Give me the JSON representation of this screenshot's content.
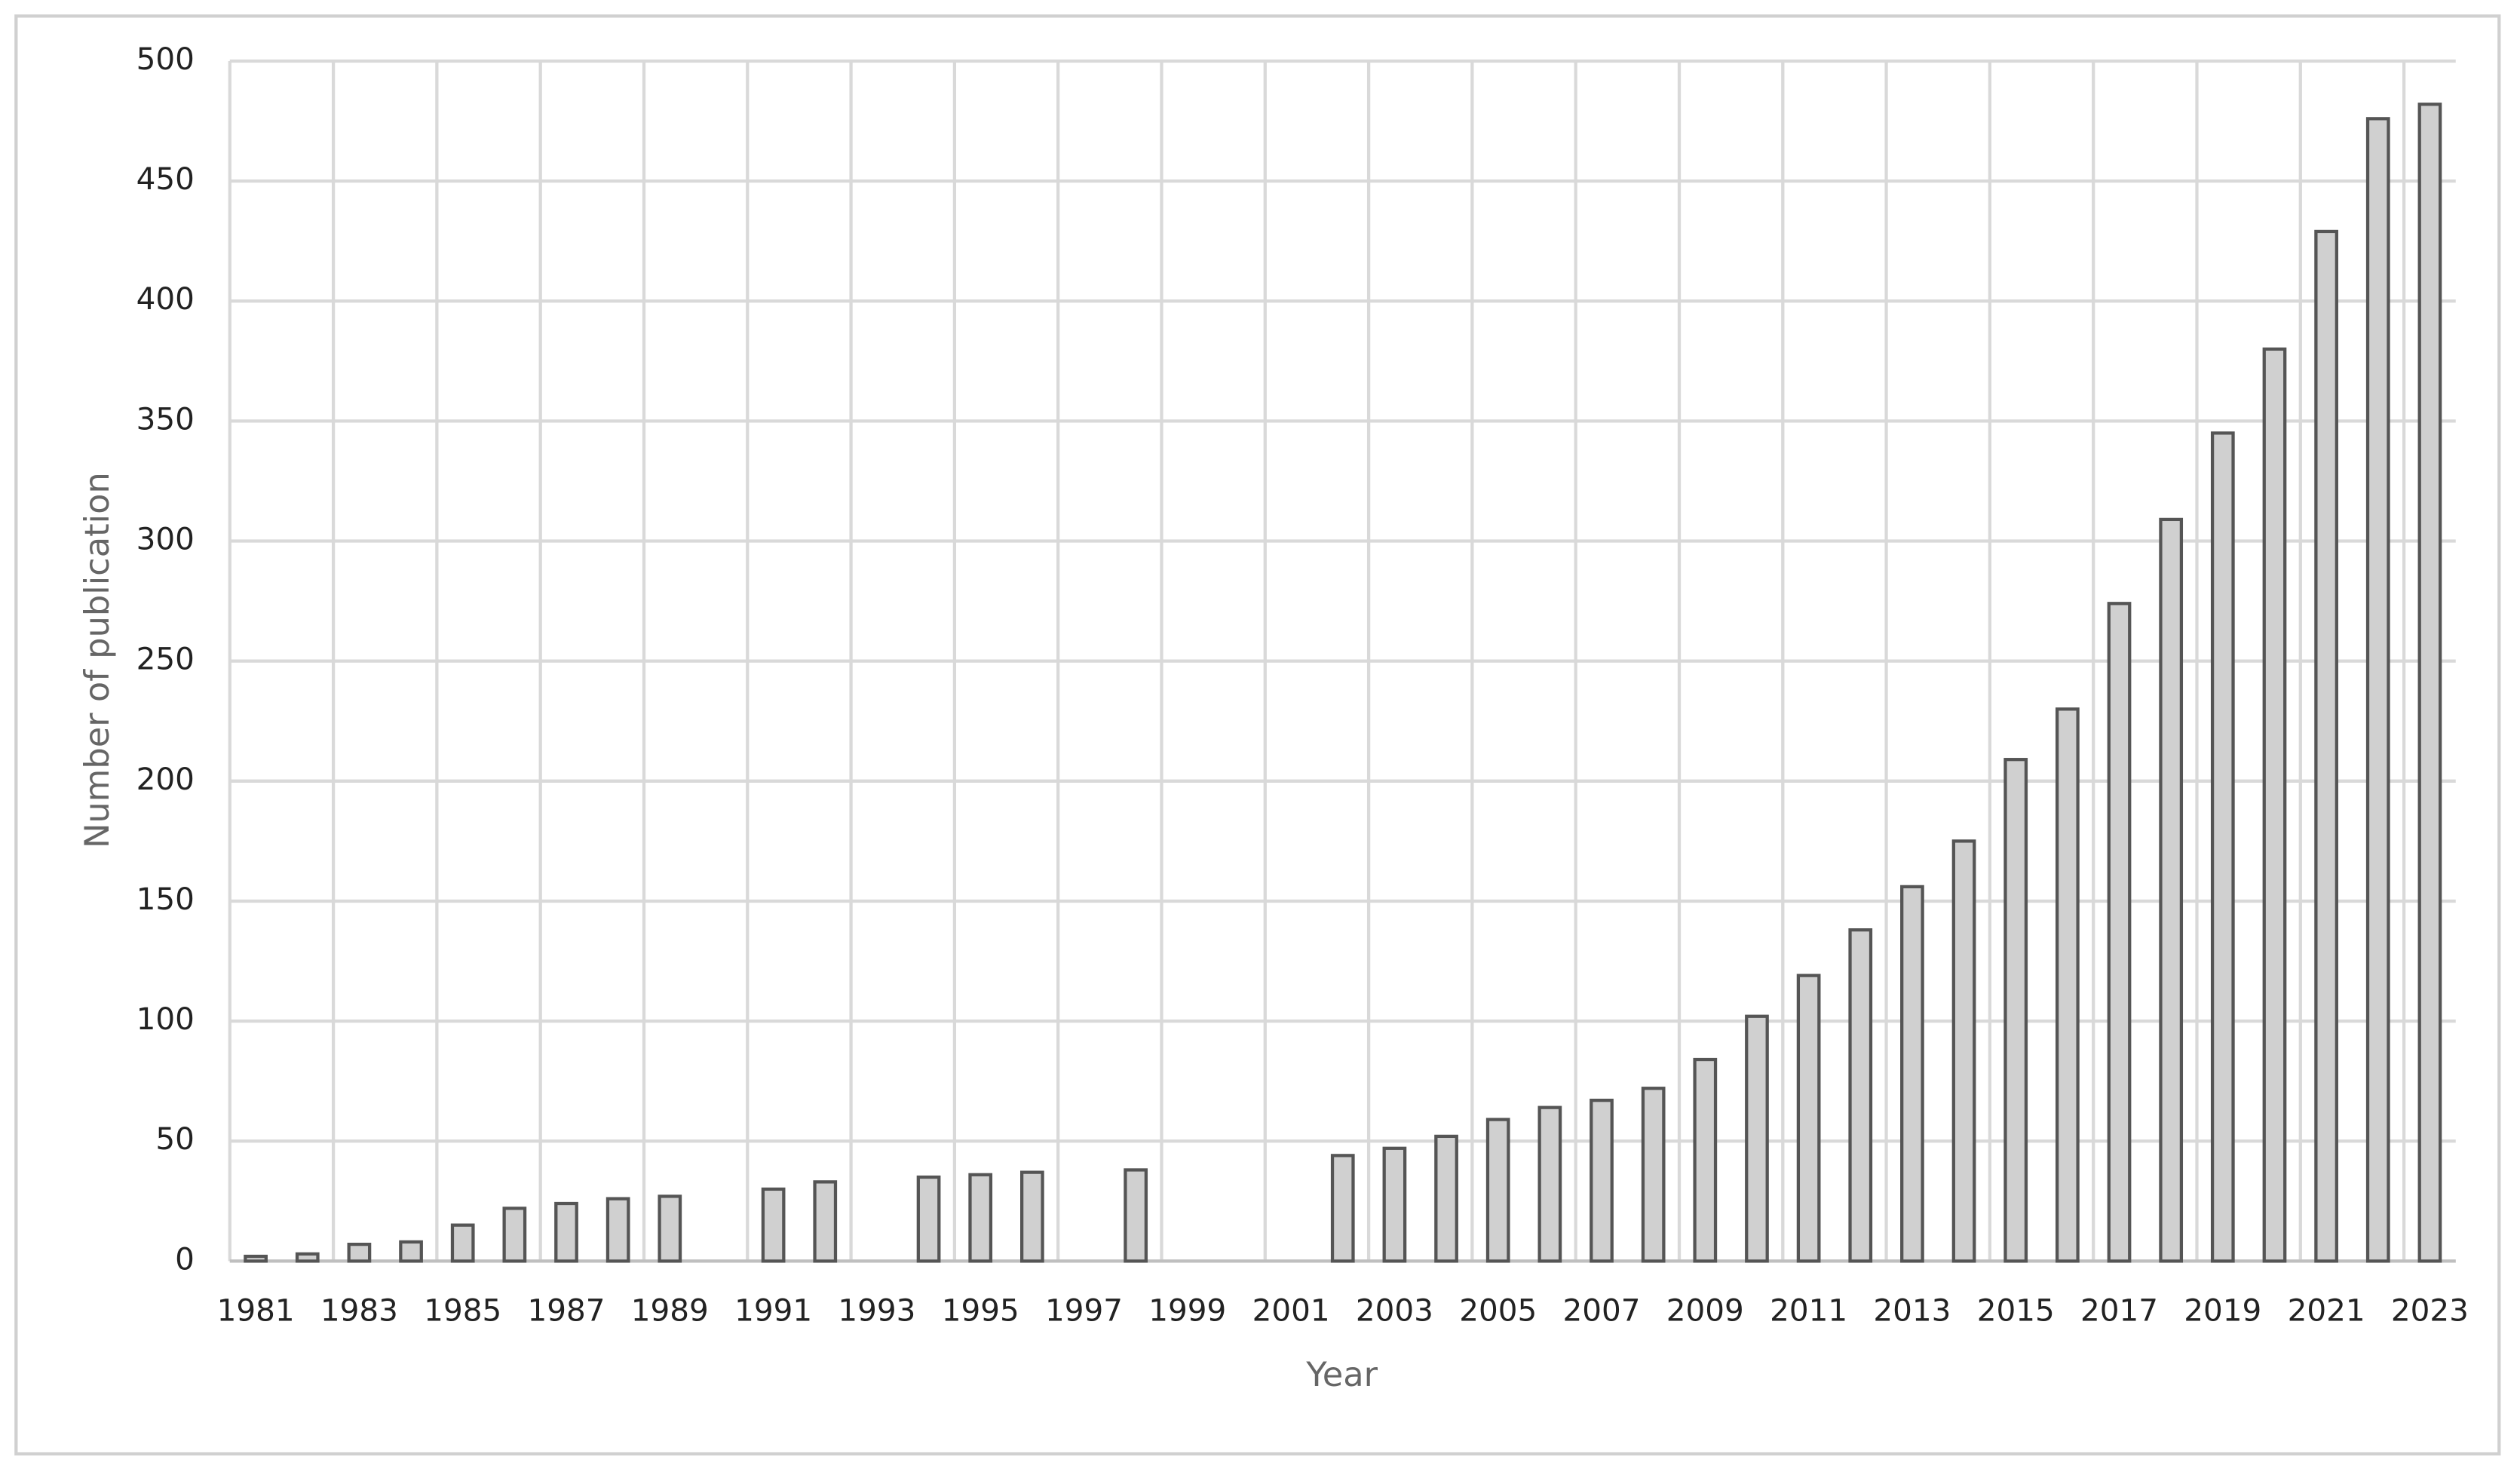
{
  "chart_data": {
    "type": "bar",
    "x_label": "Year",
    "y_label": "Number of publication",
    "categories": [
      "1981",
      null,
      "1983",
      null,
      "1985",
      null,
      "1987",
      null,
      "1989",
      null,
      "1991",
      null,
      "1993",
      null,
      "1995",
      null,
      "1997",
      null,
      "1999",
      null,
      "2001",
      null,
      "2003",
      null,
      "2005",
      null,
      "2007",
      null,
      "2009",
      null,
      "2011",
      null,
      "2013",
      null,
      "2015",
      null,
      "2017",
      null,
      "2019",
      null,
      "2021",
      null,
      "2023"
    ],
    "values": [
      2,
      3,
      7,
      8,
      15,
      22,
      24,
      26,
      27,
      null,
      30,
      33,
      null,
      35,
      36,
      37,
      null,
      38,
      null,
      null,
      null,
      44,
      47,
      52,
      59,
      64,
      67,
      72,
      84,
      102,
      119,
      138,
      156,
      175,
      209,
      230,
      274,
      309,
      345,
      380,
      429,
      476,
      482
    ],
    "color": "#d0d0d0",
    "ylim": [
      0,
      500
    ],
    "yticks": [
      0,
      50,
      100,
      150,
      200,
      250,
      300,
      350,
      400,
      450,
      500
    ],
    "grid": true
  }
}
